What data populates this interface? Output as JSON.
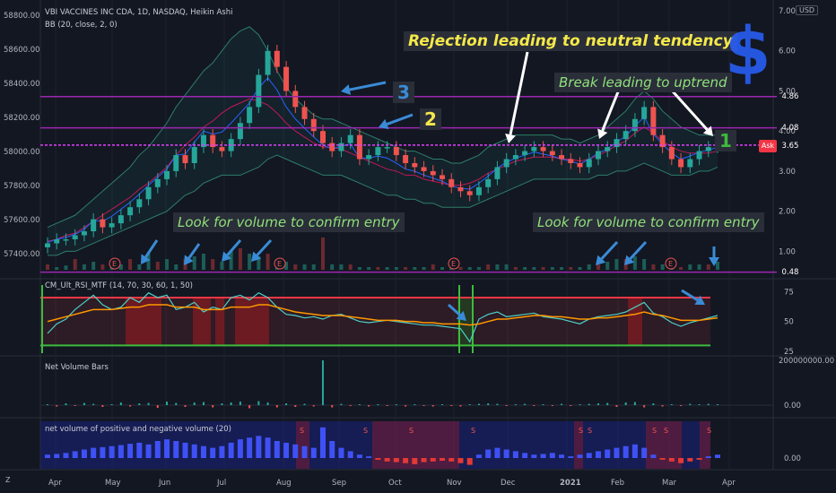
{
  "header": {
    "main": "VBI VACCINES INC CDA, 1D, NASDAQ, Heikin Ashi",
    "bb": "BB (20, close, 2, 0)",
    "rsi": "CM_Ult_RSI_MTF (14, 70, 30, 60, 1, 50)",
    "nvb": "Net Volume Bars",
    "nvol": "net volume of positive and negative volume (20)"
  },
  "currency": "USD",
  "price_tags": [
    {
      "text": "4.86",
      "color": "#9c27b0"
    },
    {
      "text": "4.08",
      "color": "#9c27b0"
    },
    {
      "text": "3.65",
      "color": "#f23645"
    },
    {
      "text": "0.48",
      "color": "#9c27b0"
    }
  ],
  "ask_label": "Ask",
  "annotations": {
    "rejection": "Rejection leading to neutral tendency",
    "break": "Break leading to uptrend",
    "vol1": "Look for volume to confirm entry",
    "vol2": "Look for volume to confirm entry",
    "n3": "3",
    "n2": "2",
    "n1": "1",
    "dollar": "$"
  },
  "earnings_marker": "E",
  "signal_marker": "S",
  "bottom_left": "Z",
  "chart_data": [
    {
      "type": "line",
      "name": "main",
      "left_axis_ticks": [
        "58800.00",
        "58600.00",
        "58400.00",
        "58200.00",
        "58000.00",
        "57800.00",
        "57600.00",
        "57400.00"
      ],
      "right_axis_ticks": [
        "7.00",
        "6.00",
        "5.00",
        "4.00",
        "3.00",
        "2.00",
        "1.00"
      ],
      "x_ticks": [
        "Apr",
        "May",
        "Jun",
        "Jul",
        "Aug",
        "Sep",
        "Oct",
        "Nov",
        "Dec",
        "2021",
        "Feb",
        "Mar",
        "Apr"
      ],
      "ylim": [
        0.45,
        7.0
      ],
      "horizontal_levels": [
        4.86,
        4.08,
        3.65,
        0.48
      ],
      "close": [
        1.2,
        1.3,
        1.3,
        1.4,
        1.5,
        1.8,
        1.6,
        1.7,
        1.9,
        2.1,
        2.3,
        2.6,
        2.8,
        3.0,
        3.4,
        3.2,
        3.6,
        3.9,
        3.6,
        3.5,
        3.8,
        4.2,
        4.6,
        5.4,
        6.0,
        5.6,
        5.0,
        4.6,
        4.3,
        4.0,
        3.7,
        3.5,
        3.7,
        3.9,
        3.3,
        3.4,
        3.6,
        3.6,
        3.4,
        3.2,
        3.1,
        3.0,
        2.9,
        2.8,
        2.6,
        2.5,
        2.4,
        2.6,
        2.8,
        3.1,
        3.3,
        3.4,
        3.5,
        3.6,
        3.5,
        3.4,
        3.3,
        3.2,
        3.1,
        3.3,
        3.5,
        3.6,
        3.8,
        4.0,
        4.3,
        4.6,
        3.9,
        3.6,
        3.3,
        3.1,
        3.3,
        3.5,
        3.6,
        3.7
      ],
      "bb_upper": [
        1.6,
        1.7,
        1.8,
        1.9,
        2.1,
        2.3,
        2.5,
        2.7,
        2.9,
        3.1,
        3.4,
        3.6,
        3.9,
        4.2,
        4.6,
        4.9,
        5.2,
        5.5,
        5.7,
        6.0,
        6.3,
        6.5,
        6.6,
        6.4,
        6.0,
        5.5,
        5.1,
        4.8,
        4.6,
        4.4,
        4.3,
        4.3,
        4.2,
        4.1,
        4.0,
        3.9,
        3.8,
        3.7,
        3.6,
        3.5,
        3.5,
        3.4,
        3.3,
        3.3,
        3.2,
        3.2,
        3.3,
        3.4,
        3.6,
        3.7,
        3.8,
        3.9,
        3.9,
        3.9,
        3.9,
        3.9,
        3.8,
        3.8,
        3.7,
        3.8,
        3.9,
        4.1,
        4.3,
        4.5,
        4.8,
        5.0,
        4.8,
        4.5,
        4.3,
        4.1,
        4.0,
        3.9,
        3.9,
        3.9
      ],
      "bb_lower": [
        0.9,
        0.9,
        1.0,
        1.0,
        1.1,
        1.2,
        1.3,
        1.4,
        1.5,
        1.6,
        1.7,
        1.8,
        1.9,
        2.0,
        2.2,
        2.4,
        2.5,
        2.7,
        2.8,
        2.9,
        2.9,
        2.9,
        3.0,
        3.1,
        3.3,
        3.4,
        3.3,
        3.2,
        3.1,
        3.0,
        2.9,
        2.9,
        2.9,
        2.8,
        2.7,
        2.6,
        2.5,
        2.4,
        2.4,
        2.3,
        2.3,
        2.2,
        2.2,
        2.1,
        2.1,
        2.1,
        2.1,
        2.2,
        2.3,
        2.4,
        2.5,
        2.6,
        2.7,
        2.8,
        2.8,
        2.8,
        2.8,
        2.8,
        2.8,
        2.8,
        2.9,
        2.9,
        3.0,
        3.0,
        3.1,
        3.2,
        3.1,
        3.0,
        2.9,
        2.9,
        2.9,
        3.0,
        3.0,
        3.1
      ],
      "volume": [
        0.1,
        0.05,
        0.08,
        0.2,
        0.1,
        0.15,
        0.1,
        0.05,
        0.1,
        0.2,
        0.1,
        0.3,
        0.15,
        0.2,
        0.1,
        0.2,
        0.25,
        0.3,
        0.2,
        0.15,
        0.35,
        0.4,
        0.3,
        0.25,
        0.3,
        0.2,
        0.15,
        0.1,
        0.1,
        0.1,
        0.6,
        0.1,
        0.1,
        0.1,
        0.05,
        0.05,
        0.05,
        0.05,
        0.05,
        0.05,
        0.05,
        0.05,
        0.1,
        0.05,
        0.05,
        0.05,
        0.05,
        0.05,
        0.1,
        0.1,
        0.1,
        0.05,
        0.05,
        0.05,
        0.05,
        0.05,
        0.05,
        0.05,
        0.05,
        0.1,
        0.1,
        0.15,
        0.2,
        0.2,
        0.25,
        0.2,
        0.1,
        0.1,
        0.05,
        0.05,
        0.1,
        0.1,
        0.1,
        0.15
      ]
    },
    {
      "type": "line",
      "name": "CM_Ult_RSI_MTF",
      "right_axis_ticks": [
        "75",
        "50",
        "25"
      ],
      "ylim": [
        22,
        82
      ],
      "levels": [
        70,
        30
      ],
      "rsi": [
        40,
        48,
        52,
        60,
        66,
        72,
        64,
        60,
        62,
        70,
        66,
        74,
        70,
        72,
        60,
        62,
        66,
        58,
        62,
        60,
        70,
        72,
        68,
        74,
        70,
        62,
        56,
        55,
        53,
        54,
        52,
        55,
        56,
        53,
        50,
        49,
        50,
        51,
        50,
        49,
        48,
        47,
        47,
        46,
        45,
        44,
        33,
        52,
        56,
        58,
        54,
        55,
        56,
        57,
        54,
        53,
        52,
        50,
        48,
        52,
        54,
        55,
        56,
        58,
        62,
        66,
        57,
        54,
        49,
        46,
        49,
        51,
        53,
        55
      ],
      "signal": [
        50,
        52,
        54,
        56,
        58,
        60,
        60,
        60,
        61,
        62,
        62,
        64,
        64,
        64,
        62,
        62,
        62,
        60,
        60,
        60,
        62,
        62,
        62,
        64,
        64,
        62,
        60,
        58,
        57,
        56,
        55,
        55,
        55,
        54,
        53,
        52,
        51,
        51,
        51,
        50,
        50,
        49,
        49,
        48,
        48,
        48,
        47,
        48,
        50,
        52,
        52,
        53,
        54,
        55,
        55,
        54,
        54,
        53,
        52,
        52,
        53,
        53,
        54,
        55,
        56,
        58,
        56,
        55,
        53,
        51,
        51,
        51,
        52,
        53
      ]
    },
    {
      "type": "bar",
      "name": "Net Volume Bars",
      "right_axis_ticks": [
        "200000000.00",
        "0.00"
      ],
      "values": [
        0.02,
        -0.03,
        0.04,
        -0.02,
        0.05,
        0.03,
        -0.04,
        0.02,
        0.06,
        -0.03,
        0.04,
        0.05,
        -0.06,
        0.08,
        0.05,
        -0.04,
        0.06,
        0.07,
        -0.05,
        0.04,
        0.06,
        0.08,
        -0.07,
        0.09,
        0.06,
        -0.05,
        0.04,
        -0.04,
        0.03,
        -0.03,
        1.0,
        -0.05,
        0.03,
        -0.02,
        0.02,
        -0.03,
        0.02,
        -0.02,
        0.02,
        -0.03,
        0.02,
        -0.02,
        -0.03,
        0.02,
        -0.02,
        -0.03,
        0.02,
        0.03,
        0.04,
        0.03,
        -0.02,
        0.02,
        0.03,
        -0.02,
        0.02,
        -0.02,
        0.03,
        -0.02,
        0.02,
        0.03,
        0.04,
        0.05,
        -0.04,
        0.06,
        0.07,
        -0.05,
        0.04,
        -0.03,
        0.02,
        -0.02,
        0.03,
        0.02,
        0.03,
        0.02
      ]
    },
    {
      "type": "area",
      "name": "net volume of positive and negative volume (20)",
      "right_axis_ticks": [
        "0.00"
      ],
      "values": [
        0.1,
        0.12,
        0.15,
        0.2,
        0.25,
        0.3,
        0.32,
        0.35,
        0.38,
        0.42,
        0.45,
        0.4,
        0.5,
        0.55,
        0.5,
        0.45,
        0.4,
        0.35,
        0.3,
        0.35,
        0.45,
        0.55,
        0.6,
        0.65,
        0.6,
        0.5,
        0.45,
        0.4,
        0.35,
        0.3,
        0.9,
        0.5,
        0.3,
        0.2,
        0.1,
        0.05,
        -0.05,
        -0.1,
        -0.12,
        -0.15,
        -0.18,
        -0.12,
        -0.1,
        -0.08,
        -0.1,
        -0.15,
        -0.2,
        0.1,
        0.25,
        0.3,
        0.25,
        0.2,
        0.15,
        0.1,
        0.12,
        0.15,
        0.1,
        0.05,
        0.1,
        0.15,
        0.2,
        0.25,
        0.3,
        0.35,
        0.4,
        0.3,
        0.1,
        -0.05,
        -0.1,
        -0.15,
        -0.1,
        -0.05,
        0.05,
        0.1
      ]
    }
  ]
}
